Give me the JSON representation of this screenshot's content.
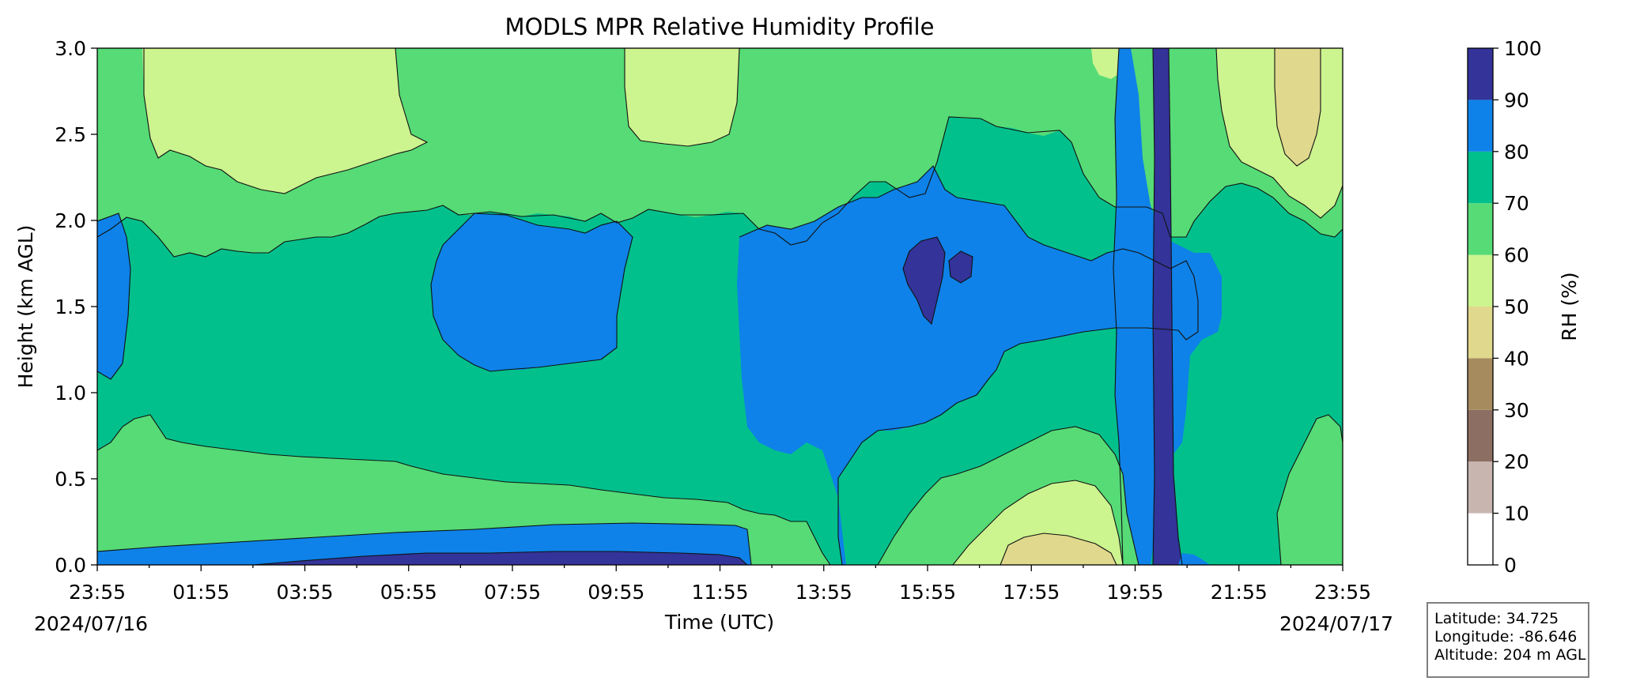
{
  "chart_data": {
    "type": "heatmap",
    "title": "MODLS MPR Relative Humidity Profile",
    "xlabel": "Time (UTC)",
    "ylabel": "Height (km AGL)",
    "x_tick_labels": [
      "23:55",
      "01:55",
      "03:55",
      "05:55",
      "07:55",
      "09:55",
      "11:55",
      "13:55",
      "15:55",
      "17:55",
      "19:55",
      "21:55",
      "23:55"
    ],
    "start_date": "2024/07/16",
    "end_date": "2024/07/17",
    "y_ticks": [
      0.0,
      0.5,
      1.0,
      1.5,
      2.0,
      2.5,
      3.0
    ],
    "y_tick_labels": [
      "0.0",
      "0.5",
      "1.0",
      "1.5",
      "2.0",
      "2.5",
      "3.0"
    ],
    "ylim": [
      0,
      3.0
    ],
    "colorbar": {
      "label": "RH (%)",
      "levels": [
        0,
        10,
        20,
        30,
        40,
        50,
        60,
        70,
        80,
        90,
        100
      ],
      "tick_labels": [
        "0",
        "10",
        "20",
        "30",
        "40",
        "50",
        "60",
        "70",
        "80",
        "90",
        "100"
      ],
      "colors": [
        "#ffffff",
        "#c8b5b0",
        "#8c6e62",
        "#a68b5e",
        "#e0d88c",
        "#ccf48f",
        "#56db76",
        "#02c08c",
        "#0e82e8",
        "#333399"
      ]
    },
    "grid": false
  },
  "station": {
    "latitude": "Latitude: 34.725",
    "longitude": "Longitude: -86.646",
    "altitude": "Altitude: 204 m AGL"
  }
}
